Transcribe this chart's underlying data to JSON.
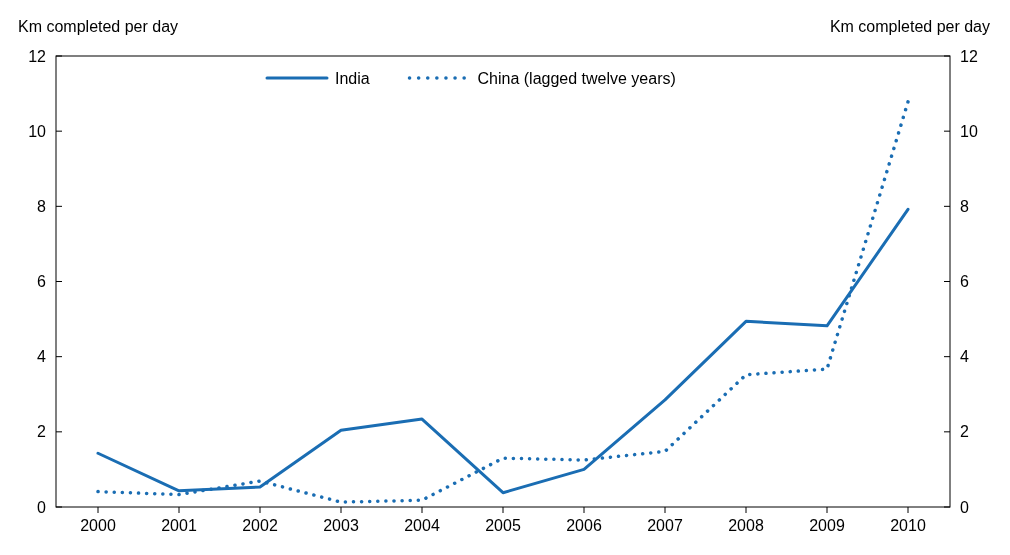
{
  "chart_data": {
    "type": "line",
    "ylabel": "Km completed per day",
    "y2label": "Km completed per day",
    "categories": [
      "2000",
      "2001",
      "2002",
      "2003",
      "2004",
      "2005",
      "2006",
      "2007",
      "2008",
      "2009",
      "2010"
    ],
    "series": [
      {
        "name": "India",
        "color": "#1a6db3",
        "line_style": "solid",
        "values": [
          1.43,
          0.43,
          0.53,
          2.04,
          2.34,
          0.38,
          1.0,
          2.85,
          4.94,
          4.82,
          7.92
        ]
      },
      {
        "name": "China (lagged twelve years)",
        "color": "#1a6db3",
        "line_style": "dotted",
        "values": [
          0.41,
          0.33,
          0.69,
          0.13,
          0.18,
          1.3,
          1.25,
          1.48,
          3.52,
          3.67,
          10.78
        ]
      }
    ],
    "ylim": [
      0,
      12
    ],
    "yticks": [
      0,
      2,
      4,
      6,
      8,
      10,
      12
    ],
    "y2lim": [
      0,
      12
    ],
    "y2ticks": [
      0,
      2,
      4,
      6,
      8,
      10,
      12
    ],
    "grid": false,
    "legend": "top"
  }
}
